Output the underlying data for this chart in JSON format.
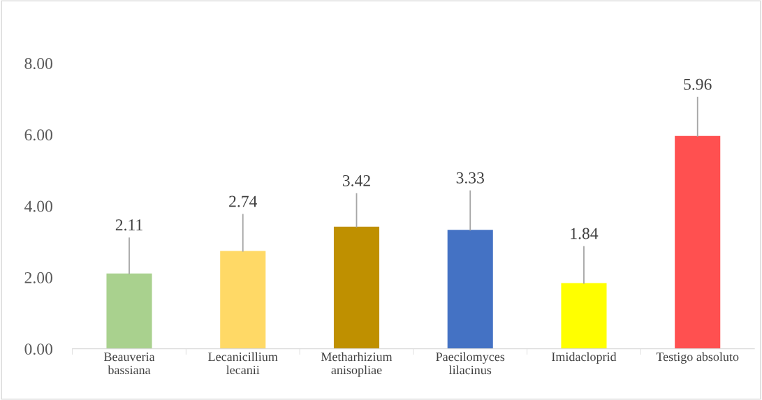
{
  "chart_data": {
    "type": "bar",
    "categories": [
      "Beauveria\nbassiana",
      "Lecanicillium\nlecanii",
      "Metharhizium\nanisopliae",
      "Paecilomyces\nlilacinus",
      "Imidacloprid",
      "Testigo absoluto"
    ],
    "values": [
      2.11,
      2.74,
      3.42,
      3.33,
      1.84,
      5.96
    ],
    "colors": [
      "#a9d18e",
      "#ffd966",
      "#bf9000",
      "#4472c4",
      "#ffff00",
      "#ff5050"
    ],
    "errors": [
      [
        2.11,
        3.1
      ],
      [
        2.74,
        3.76
      ],
      [
        3.42,
        4.34
      ],
      [
        3.33,
        4.42
      ],
      [
        1.84,
        2.86
      ],
      [
        5.96,
        7.04
      ]
    ],
    "data_labels": true,
    "ylim": [
      0,
      8
    ],
    "yticks": [
      {
        "value": 0,
        "label": "0.00"
      },
      {
        "value": 2,
        "label": "2.00"
      },
      {
        "value": 4,
        "label": "4.00"
      },
      {
        "value": 6,
        "label": "6.00"
      },
      {
        "value": 8,
        "label": "8.00"
      }
    ],
    "grid": false,
    "legend": false
  }
}
